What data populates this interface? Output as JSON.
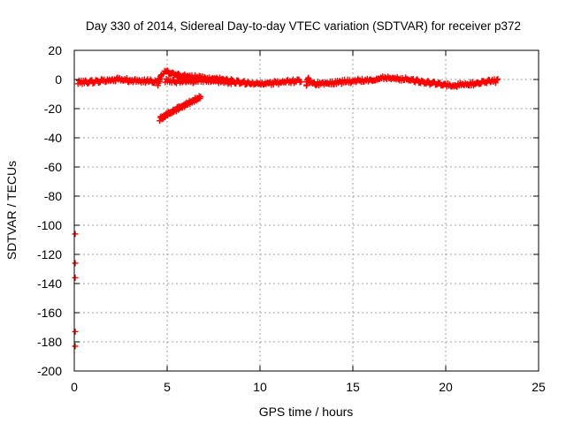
{
  "chart_data": {
    "type": "scatter",
    "title": "Day 330 of 2014, Sidereal Day-to-day VTEC variation (SDTVAR) for receiver p372",
    "xlabel": "GPS time / hours",
    "ylabel": "SDTVAR / TECUs",
    "xlim": [
      0,
      25
    ],
    "ylim": [
      -200,
      20
    ],
    "xticks": [
      0,
      5,
      10,
      15,
      20,
      25
    ],
    "yticks": [
      20,
      0,
      -20,
      -40,
      -60,
      -80,
      -100,
      -120,
      -140,
      -160,
      -180,
      -200
    ],
    "grid": true,
    "series": [
      {
        "name": "SDTVAR",
        "color": "#ff0000",
        "marker": "plus",
        "segments": [
          {
            "x": [
              0.2,
              0.6,
              1.0,
              1.5,
              2.0,
              2.5,
              3.0,
              3.5,
              4.0,
              4.4
            ],
            "y": [
              -2,
              -2,
              -1.5,
              -0.5,
              0,
              0,
              -0.5,
              -1,
              -1,
              -1.5
            ]
          },
          {
            "x": [
              4.5,
              4.6,
              4.7
            ],
            "y": [
              -3,
              1,
              2.5
            ]
          },
          {
            "x": [
              4.8,
              5.0,
              5.3,
              5.6,
              6.0,
              6.5,
              7.0,
              7.5,
              8.0,
              8.5,
              9.0,
              9.5,
              10.0,
              10.5,
              11.0,
              11.5,
              12.0,
              12.2
            ],
            "y": [
              5,
              5,
              4,
              3,
              2,
              1.5,
              1,
              0.5,
              0,
              -1,
              -2,
              -3,
              -3,
              -2.5,
              -2,
              -1.5,
              -1,
              -0.5
            ]
          },
          {
            "x": [
              4.9,
              5.3,
              5.7,
              6.0,
              6.5,
              7.0,
              7.5,
              8.0,
              8.5
            ],
            "y": [
              -1,
              -1,
              -1.5,
              -1.5,
              -1,
              -0.5,
              -1,
              -1.5,
              -2
            ]
          },
          {
            "x": [
              4.6,
              5.0,
              5.5,
              6.0,
              6.5,
              6.8
            ],
            "y": [
              -27,
              -24,
              -20.5,
              -17,
              -14,
              -12
            ]
          },
          {
            "x": [
              12.5,
              12.6,
              12.7
            ],
            "y": [
              -3,
              0,
              -2
            ]
          },
          {
            "x": [
              12.8,
              13.0,
              13.5,
              14.0,
              14.5,
              15.0,
              15.5,
              16.0,
              16.5,
              17.0,
              17.5,
              18.0,
              18.5,
              19.0,
              19.5,
              20.0,
              20.5,
              21.0,
              21.5,
              22.0,
              22.5,
              22.8
            ],
            "y": [
              -2,
              -3,
              -2.5,
              -2,
              -1.5,
              -1,
              -0.5,
              0,
              1.5,
              1,
              0.5,
              0,
              -1,
              -2,
              -3,
              -4,
              -4,
              -3.5,
              -3,
              -2,
              -1,
              -1
            ]
          },
          {
            "x": [
              0.05,
              0.05,
              0.05,
              0.05,
              0.05
            ],
            "y": [
              -106,
              -126,
              -136,
              -173,
              -183
            ]
          }
        ]
      }
    ]
  }
}
